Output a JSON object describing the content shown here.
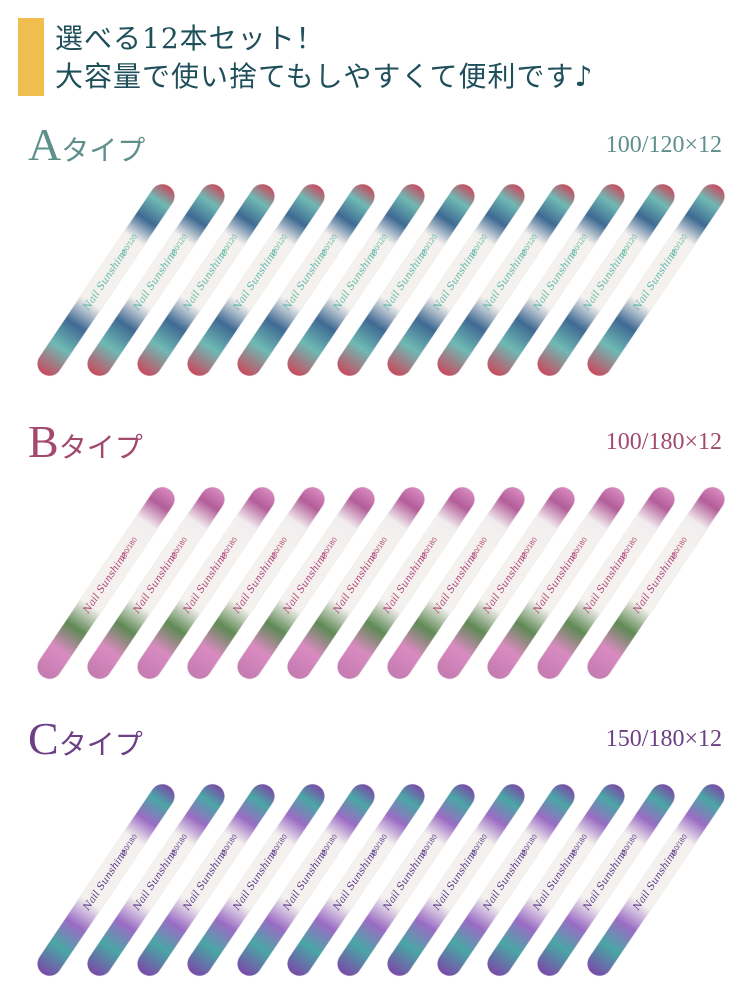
{
  "header": {
    "line1": "選べる12本セット！",
    "line2": "大容量で使い捨てもしやすくて便利です♪",
    "text_color": "#1f4f5a",
    "accent_color": "#f0bd4f"
  },
  "types": [
    {
      "letter": "A",
      "suffix": "タイプ",
      "spec": "100/120×12",
      "grit": "100/120",
      "brand": "Nail Sunshine",
      "count": 12,
      "color": "#5f8f8b",
      "text_color": "#5fb8a8",
      "pattern": [
        "#c94a5e",
        "#6fb9b4",
        "#3f6a93",
        "#f4f1ee",
        "#3f6a93",
        "#6fb9b4",
        "#c94a5e"
      ]
    },
    {
      "letter": "B",
      "suffix": "タイプ",
      "spec": "100/180×12",
      "grit": "100/180",
      "brand": "Nail Sunshine",
      "count": 12,
      "color": "#a3496e",
      "text_color": "#b0457a",
      "pattern": [
        "#d98bc0",
        "#b35d99",
        "#f2eef0",
        "#f4f1ee",
        "#5f8a55",
        "#d98bc0",
        "#c47bb0"
      ]
    },
    {
      "letter": "C",
      "suffix": "タイプ",
      "spec": "150/180×12",
      "grit": "150/180",
      "brand": "Nail Sunshine",
      "count": 12,
      "color": "#6d3f84",
      "text_color": "#5a3a8a",
      "pattern": [
        "#7a4aa8",
        "#4aa6a6",
        "#9a6cc4",
        "#f4f1ee",
        "#9a6cc4",
        "#4aa6a6",
        "#7a4aa8"
      ]
    }
  ]
}
